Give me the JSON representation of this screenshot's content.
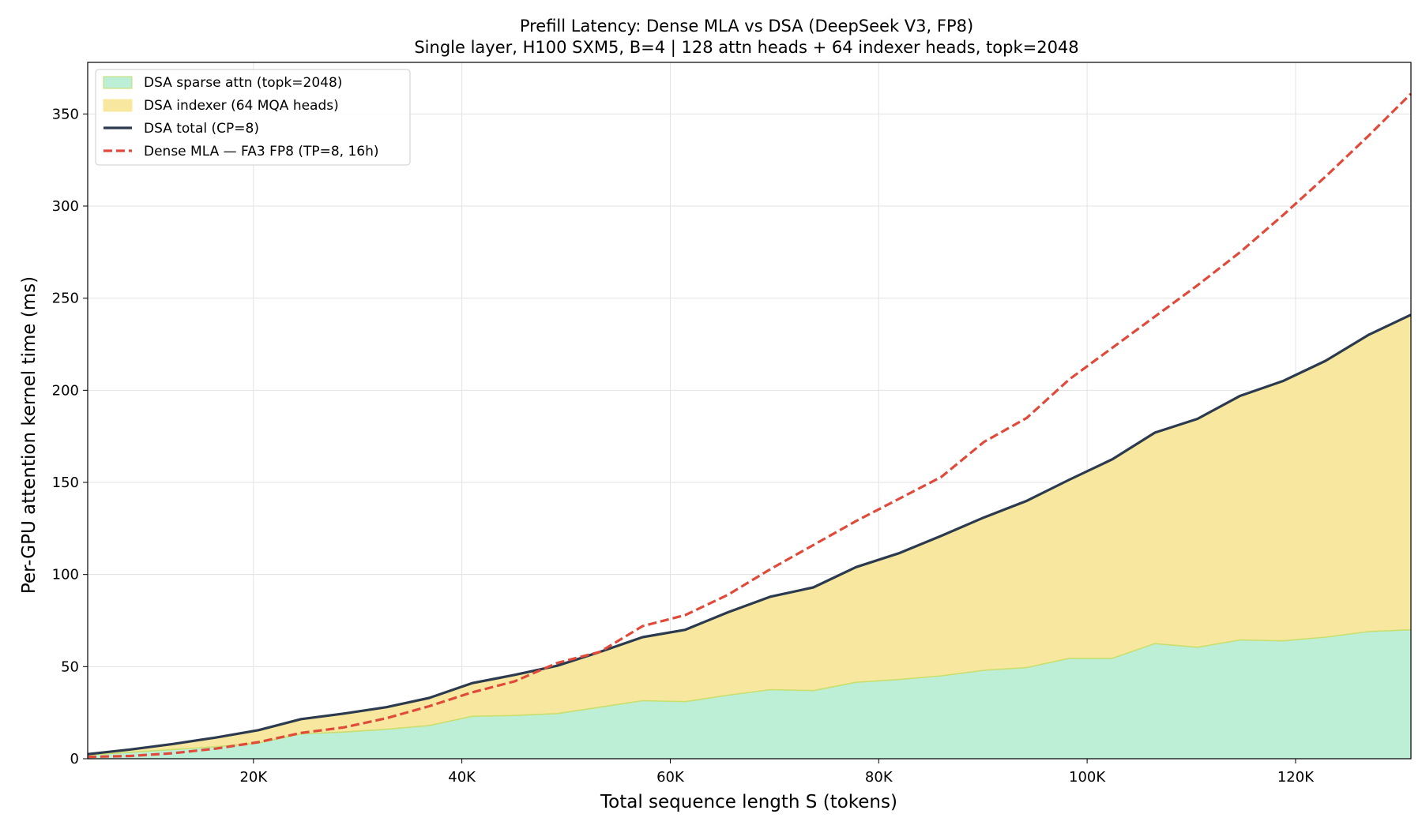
{
  "chart_data": {
    "type": "area",
    "title": "Prefill Latency: Dense MLA vs DSA (DeepSeek V3, FP8)",
    "subtitle": "Single layer, H100 SXM5, B=4 | 128 attn heads + 64 indexer heads, topk=2048",
    "xlabel": "Total sequence length S (tokens)",
    "ylabel": "Per-GPU attention kernel time (ms)",
    "xlim": [
      4096,
      131072
    ],
    "ylim": [
      0,
      378
    ],
    "xticks": [
      20000,
      40000,
      60000,
      80000,
      100000,
      120000
    ],
    "xtick_labels": [
      "20K",
      "40K",
      "60K",
      "80K",
      "100K",
      "120K"
    ],
    "yticks": [
      0,
      50,
      100,
      150,
      200,
      250,
      300,
      350
    ],
    "ytick_labels": [
      "0",
      "50",
      "100",
      "150",
      "200",
      "250",
      "300",
      "350"
    ],
    "grid": true,
    "legend_position": "top-left",
    "x": [
      4096,
      8192,
      12288,
      16384,
      20480,
      24576,
      28672,
      32768,
      36864,
      40960,
      45056,
      49152,
      53248,
      57344,
      61440,
      65536,
      69632,
      73728,
      77824,
      81920,
      86016,
      90112,
      94208,
      98304,
      102400,
      106496,
      110592,
      114688,
      118784,
      122880,
      126976,
      131072
    ],
    "series": [
      {
        "name": "DSA sparse attn (topk=2048)",
        "style": "stacked-area",
        "color": "#bdeed6",
        "edge_color": "#c8df6e",
        "values": [
          2,
          3.5,
          5,
          6.5,
          8.5,
          13.5,
          14.5,
          16,
          18,
          23,
          23.5,
          24.5,
          28,
          31.5,
          31,
          34.5,
          37.5,
          37,
          41.5,
          43,
          45,
          48,
          49.5,
          54.5,
          54.5,
          62.5,
          60.5,
          64.5,
          64,
          66,
          69,
          70
        ]
      },
      {
        "name": "DSA indexer (64 MQA heads)",
        "style": "stacked-area",
        "color": "#f8e79f",
        "edge_color": "#f8e79f",
        "values": [
          0.5,
          1.5,
          3,
          5,
          7,
          8,
          10,
          12,
          15,
          18,
          22,
          26,
          30,
          34.5,
          39,
          45,
          50.5,
          56,
          62.5,
          68.5,
          76,
          83,
          90.5,
          97,
          108,
          114.5,
          124,
          132.5,
          141,
          150,
          161,
          171
        ]
      },
      {
        "name": "DSA total (CP=8)",
        "style": "line",
        "color": "#2b3a4e",
        "values": [
          2.5,
          5,
          8,
          11.5,
          15.5,
          21.5,
          24.5,
          28,
          33,
          41,
          45.5,
          50.5,
          58,
          66,
          70,
          79.5,
          88,
          93,
          104,
          111.5,
          121,
          131,
          140,
          151.5,
          162.5,
          177,
          184.5,
          197,
          205,
          216,
          230,
          241
        ]
      },
      {
        "name": "Dense MLA — FA3 FP8 (TP=8, 16h)",
        "style": "dashed-line",
        "color": "#e04a3a",
        "values": [
          1,
          1.5,
          3,
          5.5,
          9,
          14,
          17,
          22,
          28.5,
          36,
          42,
          52,
          58,
          72,
          78,
          89,
          103,
          116,
          129,
          141,
          153,
          172,
          185,
          206,
          223,
          240,
          257,
          275,
          295,
          316,
          338,
          361
        ]
      }
    ]
  },
  "colors": {
    "grid": "#e3e3e3",
    "axis": "#000000"
  }
}
